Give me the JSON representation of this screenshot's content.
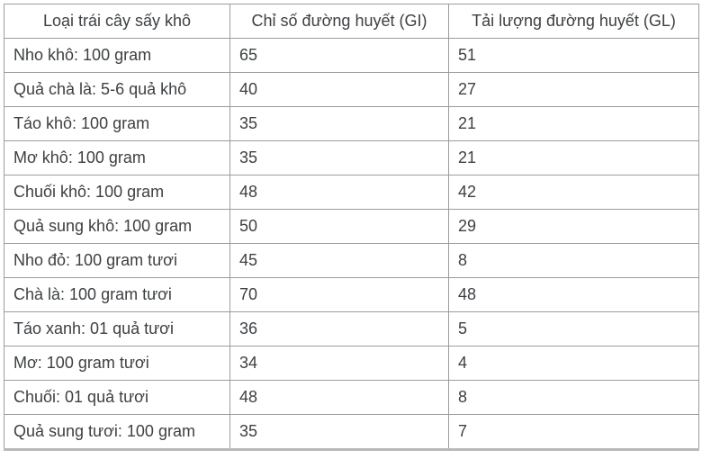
{
  "chart_data": {
    "type": "table",
    "title": "",
    "columns": [
      "Loại trái cây sấy khô",
      "Chỉ số đường huyết (GI)",
      "Tải lượng đường huyết (GL)"
    ],
    "rows": [
      [
        "Nho khô: 100 gram",
        "65",
        "51"
      ],
      [
        "Quả chà là: 5-6 quả khô",
        "40",
        "27"
      ],
      [
        "Táo khô: 100 gram",
        "35",
        "21"
      ],
      [
        "Mơ khô: 100 gram",
        "35",
        "21"
      ],
      [
        "Chuối khô: 100 gram",
        "48",
        "42"
      ],
      [
        "Quả sung khô: 100 gram",
        "50",
        "29"
      ],
      [
        "Nho đỏ: 100 gram tươi",
        "45",
        "8"
      ],
      [
        "Chà là: 100 gram tươi",
        "70",
        "48"
      ],
      [
        "Táo xanh: 01 quả tươi",
        "36",
        "5"
      ],
      [
        "Mơ: 100 gram tươi",
        "34",
        "4"
      ],
      [
        "Chuối: 01 quả tươi",
        "48",
        "8"
      ],
      [
        "Quả sung tươi: 100 gram",
        "35",
        "7"
      ]
    ],
    "layout": {
      "grid": true,
      "header_align": "center",
      "cell_align": "left"
    }
  },
  "colors": {
    "border": "#9c9c9c",
    "bottom_border": "#b9b9b9",
    "text": "#3d4043",
    "background": "#ffffff"
  }
}
